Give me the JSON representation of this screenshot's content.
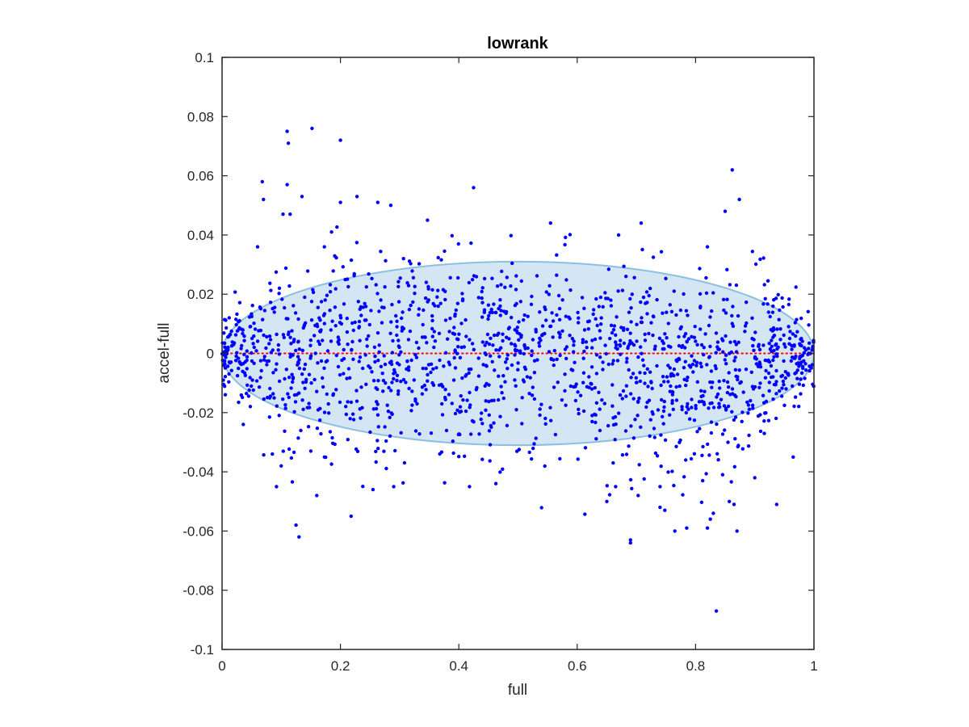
{
  "chart_data": {
    "type": "scatter",
    "title": "lowrank",
    "xlabel": "full",
    "ylabel": "accel-full",
    "xlim": [
      0,
      1
    ],
    "ylim": [
      -0.1,
      0.1
    ],
    "xticks": [
      0,
      0.2,
      0.4,
      0.6,
      0.8,
      1
    ],
    "xtick_labels": [
      "0",
      "0.2",
      "0.4",
      "0.6",
      "0.8",
      "1"
    ],
    "yticks": [
      -0.1,
      -0.08,
      -0.06,
      -0.04,
      -0.02,
      0,
      0.02,
      0.04,
      0.06,
      0.08,
      0.1
    ],
    "ytick_labels": [
      "-0.1",
      "-0.08",
      "-0.06",
      "-0.04",
      "-0.02",
      "0",
      "0.02",
      "0.04",
      "0.06",
      "0.08",
      "0.1"
    ],
    "grid": false,
    "reference_line": {
      "y": 0,
      "style": "dotted",
      "color": "#ff0000"
    },
    "confidence_ellipse": {
      "center_x": 0.5,
      "center_y": 0,
      "half_width_x": 0.5,
      "half_height_y": 0.031,
      "fill": "#d4e6f3",
      "stroke": "#8cbfe0"
    },
    "marker_color": "#0000ff",
    "n_points": 1650,
    "points": [
      [
        0.11,
        0.075
      ],
      [
        0.112,
        0.071
      ],
      [
        0.152,
        0.076
      ],
      [
        0.2,
        0.072
      ],
      [
        0.425,
        0.056
      ],
      [
        0.862,
        0.062
      ],
      [
        0.068,
        0.058
      ],
      [
        0.07,
        0.052
      ],
      [
        0.11,
        0.057
      ],
      [
        0.135,
        0.053
      ],
      [
        0.2,
        0.051
      ],
      [
        0.228,
        0.053
      ],
      [
        0.263,
        0.051
      ],
      [
        0.285,
        0.05
      ],
      [
        0.555,
        0.044
      ],
      [
        0.874,
        0.052
      ],
      [
        0.85,
        0.048
      ],
      [
        0.708,
        0.044
      ],
      [
        0.67,
        0.04
      ],
      [
        0.82,
        0.036
      ],
      [
        0.115,
        0.047
      ],
      [
        0.103,
        0.047
      ],
      [
        0.06,
        0.036
      ],
      [
        0.185,
        0.041
      ],
      [
        0.347,
        0.045
      ],
      [
        0.125,
        -0.058
      ],
      [
        0.13,
        -0.062
      ],
      [
        0.16,
        -0.048
      ],
      [
        0.218,
        -0.055
      ],
      [
        0.255,
        -0.046
      ],
      [
        0.29,
        -0.045
      ],
      [
        0.418,
        -0.045
      ],
      [
        0.69,
        -0.063
      ],
      [
        0.69,
        -0.064
      ],
      [
        0.765,
        -0.06
      ],
      [
        0.785,
        -0.059
      ],
      [
        0.83,
        -0.054
      ],
      [
        0.835,
        -0.087
      ],
      [
        0.82,
        -0.059
      ],
      [
        0.87,
        -0.06
      ],
      [
        0.937,
        -0.051
      ],
      [
        0.825,
        -0.056
      ],
      [
        0.748,
        -0.053
      ],
      [
        0.092,
        -0.045
      ],
      [
        0.1,
        -0.038
      ],
      [
        0.085,
        -0.034
      ],
      [
        0.15,
        -0.033
      ],
      [
        0.173,
        -0.035
      ],
      [
        0.65,
        -0.05
      ],
      [
        0.665,
        -0.045
      ],
      [
        0.703,
        -0.048
      ],
      [
        0.74,
        -0.052
      ],
      [
        0.74,
        -0.045
      ],
      [
        0.812,
        -0.043
      ],
      [
        0.857,
        -0.05
      ],
      [
        0.865,
        -0.051
      ],
      [
        0.9,
        -0.042
      ],
      [
        0.965,
        -0.035
      ]
    ]
  }
}
